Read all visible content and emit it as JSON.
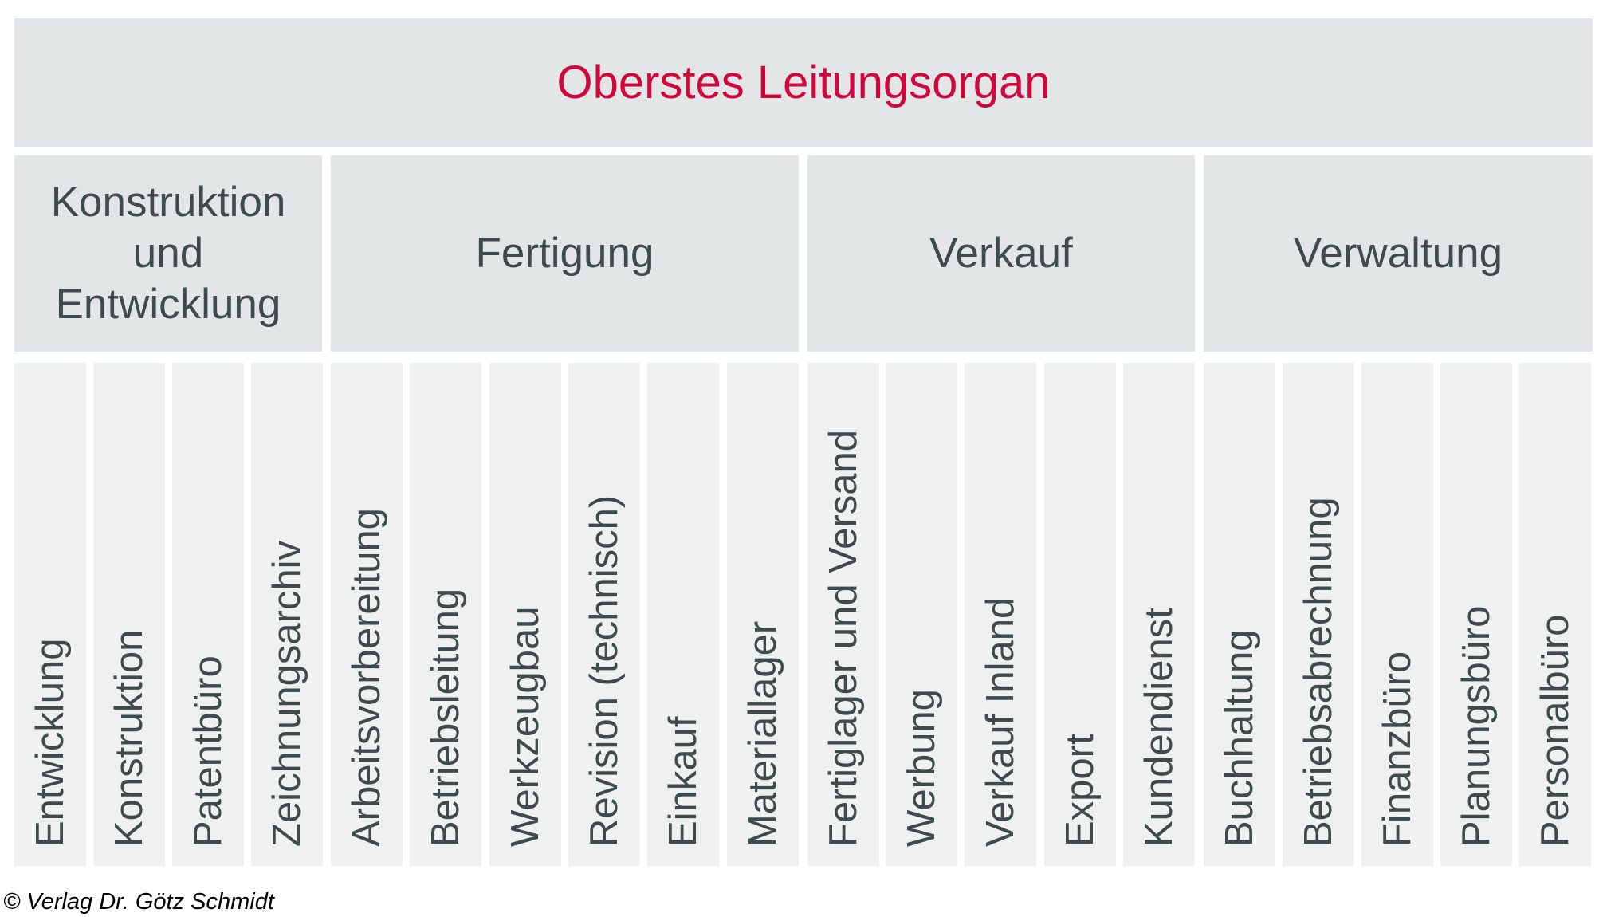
{
  "top": {
    "title": "Oberstes Leitungsorgan",
    "color": "#d0063c"
  },
  "departments": [
    {
      "label": "Konstruktion\nund\nEntwicklung",
      "units": [
        "Entwicklung",
        "Konstruktion",
        "Patentbüro",
        "Zeichnungsarchiv"
      ]
    },
    {
      "label": "Fertigung",
      "units": [
        "Arbeitsvorbereitung",
        "Betriebsleitung",
        "Werkzeugbau",
        "Revision (technisch)",
        "Einkauf",
        "Materiallager"
      ]
    },
    {
      "label": "Verkauf",
      "units": [
        "Fertiglager und Versand",
        "Werbung",
        "Verkauf Inland",
        "Export",
        "Kundendienst"
      ]
    },
    {
      "label": "Verwaltung",
      "units": [
        "Buchhaltung",
        "Betriebsabrechnung",
        "Finanzbüro",
        "Planungsbüro",
        "Personalbüro"
      ]
    }
  ],
  "copyright": "© Verlag Dr. Götz Schmidt"
}
